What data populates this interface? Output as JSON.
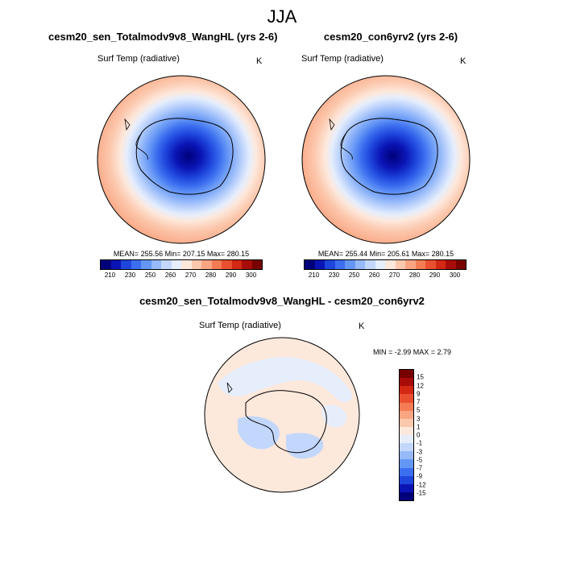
{
  "title": "JJA",
  "panels": [
    {
      "title": "cesm20_sen_Totalmodv9v8_WangHL (yrs 2-6)",
      "variable": "Surf Temp (radiative)",
      "units": "K",
      "stats": "MEAN= 255.56  Min= 207.15  Max= 280.15"
    },
    {
      "title": "cesm20_con6yrv2 (yrs 2-6)",
      "variable": "Surf Temp (radiative)",
      "units": "K",
      "stats": "MEAN= 255.44  Min= 205.61  Max= 280.15"
    }
  ],
  "diff_panel": {
    "title": "cesm20_sen_Totalmodv9v8_WangHL - cesm20_con6yrv2",
    "variable": "Surf Temp (radiative)",
    "units": "K",
    "minmax": "MIN =  -2.99 MAX =   2.79"
  },
  "colorbar_abs": {
    "colors": [
      "#00007a",
      "#0a14b4",
      "#1e46dc",
      "#3c6ef0",
      "#6496f5",
      "#96b9fa",
      "#c3d7fc",
      "#e6eefc",
      "#fde8dc",
      "#fcc8ad",
      "#f9a582",
      "#f47c55",
      "#ea5030",
      "#d22814",
      "#a80c08",
      "#780000"
    ],
    "labels": [
      "210",
      "230",
      "250",
      "260",
      "270",
      "280",
      "290",
      "300"
    ]
  },
  "colorbar_diff": {
    "colors": [
      "#00007a",
      "#0a14b4",
      "#1e46dc",
      "#3c6ef0",
      "#6496f5",
      "#96b9fa",
      "#c3d7fc",
      "#e6eefc",
      "#fde8dc",
      "#fcc8ad",
      "#f9a582",
      "#f47c55",
      "#ea5030",
      "#d22814",
      "#a80c08",
      "#780000"
    ],
    "labels": [
      "15",
      "12",
      "9",
      "7",
      "5",
      "3",
      "1",
      "0",
      "-1",
      "-3",
      "-5",
      "-7",
      "-9",
      "-12",
      "-15"
    ]
  }
}
